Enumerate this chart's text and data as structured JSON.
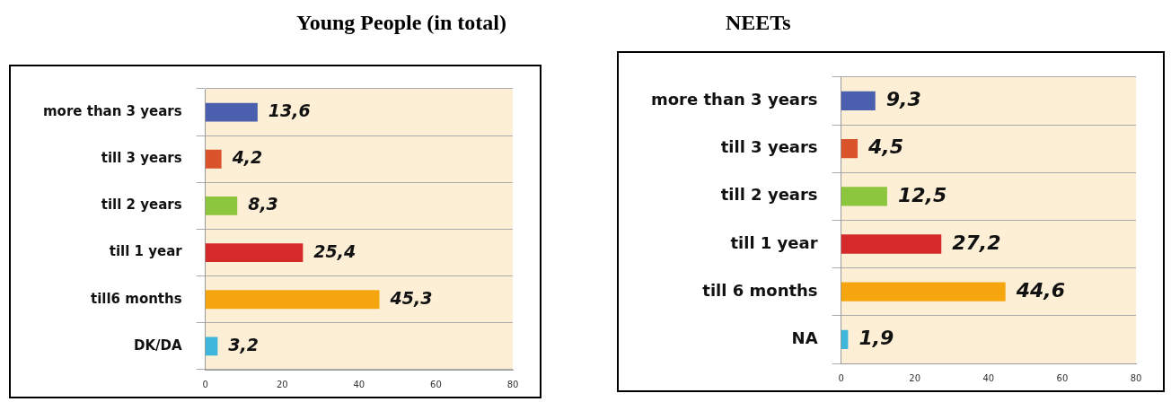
{
  "chart_data": [
    {
      "type": "bar",
      "orientation": "horizontal",
      "title": "Young People (in total)",
      "categories": [
        "more than 3 years",
        "till 3 years",
        "till 2 years",
        "till 1 year",
        "till6 months",
        "DK/DA"
      ],
      "values": [
        13.6,
        4.2,
        8.3,
        25.4,
        45.3,
        3.2
      ],
      "value_labels": [
        "13,6",
        "4,2",
        "8,3",
        "25,4",
        "45,3",
        "3,2"
      ],
      "colors": [
        "#4a5fae",
        "#d9542a",
        "#8cc63f",
        "#d42a2a",
        "#f5a60f",
        "#3fb6dc"
      ],
      "xlim": [
        0,
        80
      ],
      "xticks": [
        0,
        20,
        40,
        60,
        80
      ],
      "grid": "y",
      "legend": false
    },
    {
      "type": "bar",
      "orientation": "horizontal",
      "title": "NEETs",
      "categories": [
        "more than 3 years",
        "till 3 years",
        "till 2 years",
        "till 1 year",
        "till 6 months",
        "NA"
      ],
      "values": [
        9.3,
        4.5,
        12.5,
        27.2,
        44.6,
        1.9
      ],
      "value_labels": [
        "9,3",
        "4,5",
        "12,5",
        "27,2",
        "44,6",
        "1,9"
      ],
      "colors": [
        "#4a5fae",
        "#d9542a",
        "#8cc63f",
        "#d42a2a",
        "#f5a60f",
        "#3fb6dc"
      ],
      "xlim": [
        0,
        80
      ],
      "xticks": [
        0,
        20,
        40,
        60,
        80
      ],
      "grid": "y",
      "legend": false
    }
  ]
}
